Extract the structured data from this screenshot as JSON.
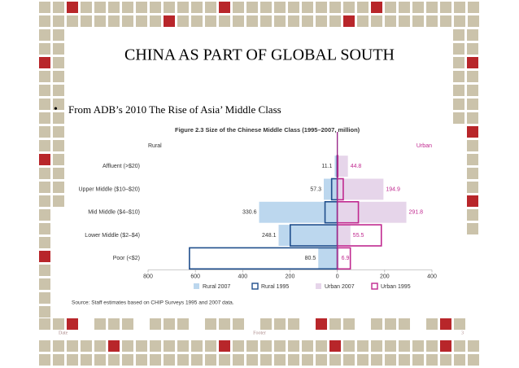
{
  "slide": {
    "title": "CHINA AS PART OF GLOBAL SOUTH",
    "bullet": "From ADB’s 2010 The Rise of Asia’ Middle Class",
    "footer": {
      "date": "Date",
      "center": "Footer",
      "page": "3"
    }
  },
  "chart_data": {
    "type": "butterfly-bar",
    "title": "Figure 2.3  Size of the Chinese Middle Class (1995–2007, million)",
    "left_label": "Rural",
    "right_label": "Urban",
    "source": "Source:  Staff estimates based on CHIP Surveys 1995 and 2007 data.",
    "categories": [
      "Affluent (>$20)",
      "Upper Middle ($10–$20)",
      "Mid Middle ($4–$10)",
      "Lower Middle ($2–$4)",
      "Poor (<$2)"
    ],
    "series": [
      {
        "name": "Rural 2007",
        "color": "#bcd7ee",
        "style": "fill",
        "values": [
          -11.1,
          -57.3,
          -330.6,
          -248.1,
          -80.5
        ],
        "value_labels": [
          "11.1",
          "57.3",
          "330.6",
          "248.1",
          "80.5"
        ]
      },
      {
        "name": "Rural 1995",
        "color": "#1f4e8c",
        "style": "outline",
        "values": [
          -1,
          -24,
          -52,
          -199,
          -625
        ]
      },
      {
        "name": "Urban 2007",
        "color": "#e6d5ea",
        "style": "fill",
        "values": [
          44.8,
          194.9,
          291.8,
          55.5,
          6.9
        ],
        "value_labels": [
          "44.8",
          "194.9",
          "291.8",
          "55.5",
          "6.9"
        ]
      },
      {
        "name": "Urban 1995",
        "color": "#c0288f",
        "style": "outline",
        "values": [
          2,
          25,
          89,
          186,
          55
        ]
      }
    ],
    "xlim": [
      -800,
      400
    ],
    "xticks": [
      {
        "value": -800,
        "label": "800"
      },
      {
        "value": -600,
        "label": "600"
      },
      {
        "value": -400,
        "label": "400"
      },
      {
        "value": -200,
        "label": "200"
      },
      0,
      200,
      400
    ]
  }
}
